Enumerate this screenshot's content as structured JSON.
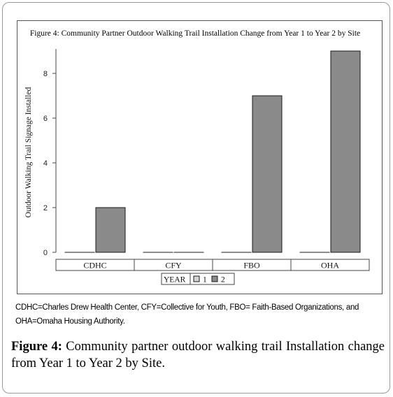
{
  "chart_data": {
    "type": "bar",
    "title": "Figure 4: Community Partner Outdoor Walking Trail Installation Change from Year 1 to Year 2 by Site",
    "ylabel": "Outdoor Walking Trail Signage Installed",
    "xlabel": "",
    "categories": [
      "CDHC",
      "CFY",
      "FBO",
      "OHA"
    ],
    "series": [
      {
        "name": "1",
        "values": [
          0,
          0,
          0,
          0
        ],
        "color": "#d4d4d4"
      },
      {
        "name": "2",
        "values": [
          2,
          0,
          7,
          9
        ],
        "color": "#8a8a8a"
      }
    ],
    "ylim": [
      0,
      9
    ],
    "yticks": [
      0,
      2,
      4,
      6,
      8
    ],
    "legend": {
      "title": "YEAR",
      "placement": "bottom"
    },
    "grid": false
  },
  "footnote": "CDHC=Charles Drew Health Center, CFY=Collective for Youth, FBO= Faith-Based Organizations, and OHA=Omaha Housing Authority.",
  "caption": {
    "label": "Figure 4:",
    "text": " Community partner outdoor walking trail Installation change from Year 1 to Year 2 by Site."
  }
}
